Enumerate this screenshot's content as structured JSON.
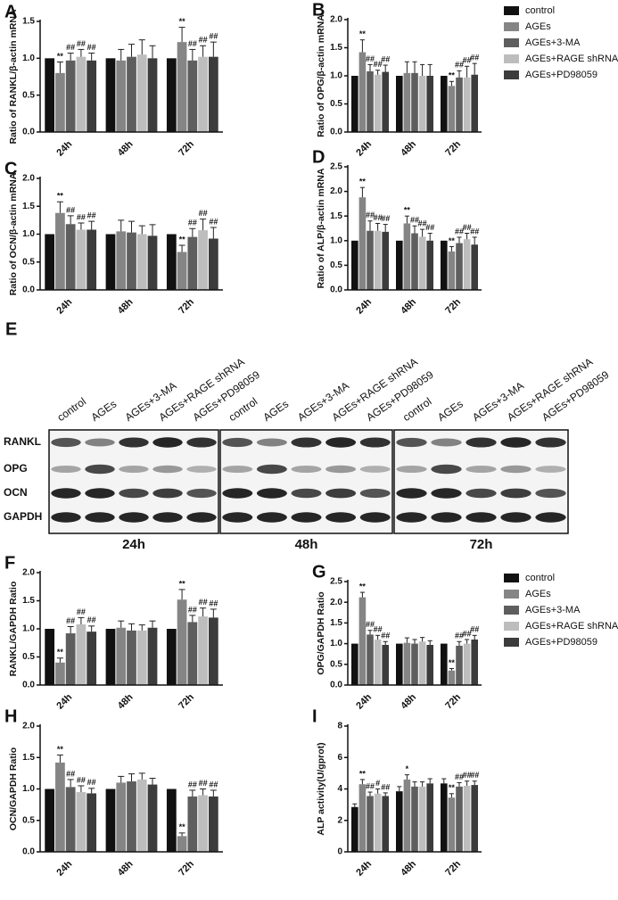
{
  "chart_data": [
    {
      "type": "bar",
      "panel": "A",
      "ylabel": "Ratio of RANKL/β-actin mRNA",
      "categories": [
        "24h",
        "48h",
        "72h"
      ],
      "ylim": [
        0,
        1.5
      ],
      "yticks": [
        {
          "value": 0,
          "label": "0.0"
        },
        0.5,
        {
          "value": 1,
          "label": "1.0"
        },
        1.5
      ],
      "series": [
        {
          "color": "#111111",
          "values": [
            1.0,
            1.0,
            1.0
          ],
          "errors": [
            0,
            0,
            0
          ],
          "annotations": [
            null,
            null,
            null
          ]
        },
        {
          "color": "#858585",
          "values": [
            0.8,
            0.97,
            1.22
          ],
          "errors": [
            0.15,
            0.15,
            0.2
          ],
          "annotations": [
            "**",
            null,
            "**"
          ]
        },
        {
          "color": "#5e5e5e",
          "values": [
            0.97,
            1.02,
            0.97
          ],
          "errors": [
            0.1,
            0.17,
            0.15
          ],
          "annotations": [
            "##",
            null,
            "##"
          ]
        },
        {
          "color": "#bdbdbd",
          "values": [
            1.02,
            1.05,
            1.02
          ],
          "errors": [
            0.1,
            0.2,
            0.15
          ],
          "annotations": [
            "##",
            null,
            "##"
          ]
        },
        {
          "color": "#3c3c3c",
          "values": [
            0.97,
            1.0,
            1.02
          ],
          "errors": [
            0.1,
            0.17,
            0.2
          ],
          "annotations": [
            "##",
            null,
            "##"
          ]
        }
      ]
    },
    {
      "type": "bar",
      "panel": "B",
      "ylabel": "Ratio of OPG/β-actin mRNA",
      "categories": [
        "24h",
        "48h",
        "72h"
      ],
      "ylim": [
        0,
        2
      ],
      "yticks": [
        {
          "value": 0,
          "label": "0.0"
        },
        0.5,
        {
          "value": 1,
          "label": "1.0"
        },
        1.5,
        {
          "value": 2,
          "label": "2.0"
        }
      ],
      "legend": "right",
      "series": [
        {
          "name": "control",
          "color": "#111111",
          "values": [
            1.0,
            1.0,
            1.0
          ],
          "errors": [
            0,
            0,
            0
          ],
          "annotations": [
            null,
            null,
            null
          ]
        },
        {
          "name": "AGEs",
          "color": "#858585",
          "values": [
            1.42,
            1.05,
            0.82
          ],
          "errors": [
            0.22,
            0.2,
            0.08
          ],
          "annotations": [
            "**",
            null,
            "**"
          ]
        },
        {
          "name": "AGEs+3-MA",
          "color": "#5e5e5e",
          "values": [
            1.08,
            1.05,
            0.97
          ],
          "errors": [
            0.12,
            0.2,
            0.12
          ],
          "annotations": [
            "##",
            null,
            "##"
          ]
        },
        {
          "name": "AGEs+RAGE shRNA",
          "color": "#bdbdbd",
          "values": [
            1.02,
            1.0,
            0.97
          ],
          "errors": [
            0.08,
            0.2,
            0.2
          ],
          "annotations": [
            "##",
            null,
            "##"
          ]
        },
        {
          "name": "AGEs+PD98059",
          "color": "#3c3c3c",
          "values": [
            1.07,
            1.0,
            1.02
          ],
          "errors": [
            0.12,
            0.2,
            0.2
          ],
          "annotations": [
            "##",
            null,
            "##"
          ]
        }
      ]
    },
    {
      "type": "bar",
      "panel": "C",
      "ylabel": "Ratio of OCN/β-actin mRNA",
      "categories": [
        "24h",
        "48h",
        "72h"
      ],
      "ylim": [
        0,
        2
      ],
      "yticks": [
        {
          "value": 0,
          "label": "0.0"
        },
        0.5,
        {
          "value": 1,
          "label": "1.0"
        },
        1.5,
        {
          "value": 2,
          "label": "2.0"
        }
      ],
      "series": [
        {
          "color": "#111111",
          "values": [
            1.0,
            1.0,
            1.0
          ],
          "errors": [
            0,
            0,
            0
          ],
          "annotations": [
            null,
            null,
            null
          ]
        },
        {
          "color": "#858585",
          "values": [
            1.38,
            1.05,
            0.68
          ],
          "errors": [
            0.2,
            0.2,
            0.12
          ],
          "annotations": [
            "**",
            null,
            "**"
          ]
        },
        {
          "color": "#5e5e5e",
          "values": [
            1.18,
            1.03,
            0.95
          ],
          "errors": [
            0.15,
            0.2,
            0.15
          ],
          "annotations": [
            "##",
            null,
            "##"
          ]
        },
        {
          "color": "#bdbdbd",
          "values": [
            1.08,
            1.0,
            1.07
          ],
          "errors": [
            0.12,
            0.15,
            0.2
          ],
          "annotations": [
            "##",
            null,
            "##"
          ]
        },
        {
          "color": "#3c3c3c",
          "values": [
            1.08,
            0.97,
            0.92
          ],
          "errors": [
            0.15,
            0.2,
            0.2
          ],
          "annotations": [
            "##",
            null,
            "##"
          ]
        }
      ]
    },
    {
      "type": "bar",
      "panel": "D",
      "ylabel": "Ratio of ALP/β-actin mRNA",
      "categories": [
        "24h",
        "48h",
        "72h"
      ],
      "ylim": [
        0,
        2.5
      ],
      "yticks": [
        {
          "value": 0,
          "label": "0.0"
        },
        0.5,
        {
          "value": 1,
          "label": "1.0"
        },
        1.5,
        {
          "value": 2,
          "label": "2.0"
        },
        2.5
      ],
      "series": [
        {
          "color": "#111111",
          "values": [
            1.0,
            1.0,
            1.0
          ],
          "errors": [
            0,
            0,
            0
          ],
          "annotations": [
            null,
            null,
            null
          ]
        },
        {
          "color": "#858585",
          "values": [
            1.88,
            1.35,
            0.78
          ],
          "errors": [
            0.2,
            0.15,
            0.1
          ],
          "annotations": [
            "**",
            "**",
            "**"
          ]
        },
        {
          "color": "#5e5e5e",
          "values": [
            1.2,
            1.15,
            0.95
          ],
          "errors": [
            0.2,
            0.15,
            0.12
          ],
          "annotations": [
            "##",
            "##",
            "##"
          ]
        },
        {
          "color": "#bdbdbd",
          "values": [
            1.2,
            1.08,
            1.03
          ],
          "errors": [
            0.15,
            0.15,
            0.12
          ],
          "annotations": [
            "##",
            "##",
            "##"
          ]
        },
        {
          "color": "#3c3c3c",
          "values": [
            1.18,
            1.0,
            0.92
          ],
          "errors": [
            0.15,
            0.15,
            0.15
          ],
          "annotations": [
            "##",
            "##",
            "##"
          ]
        }
      ]
    },
    {
      "type": "bar",
      "panel": "F",
      "ylabel": "RANKL/GAPDH Ratio",
      "categories": [
        "24h",
        "48h",
        "72h"
      ],
      "ylim": [
        0,
        2
      ],
      "yticks": [
        {
          "value": 0,
          "label": "0.0"
        },
        0.5,
        {
          "value": 1,
          "label": "1.0"
        },
        1.5,
        {
          "value": 2,
          "label": "2.0"
        }
      ],
      "series": [
        {
          "color": "#111111",
          "values": [
            1.0,
            1.0,
            1.0
          ],
          "errors": [
            0,
            0,
            0
          ],
          "annotations": [
            null,
            null,
            null
          ]
        },
        {
          "color": "#858585",
          "values": [
            0.4,
            1.02,
            1.52
          ],
          "errors": [
            0.08,
            0.12,
            0.18
          ],
          "annotations": [
            "**",
            null,
            "**"
          ]
        },
        {
          "color": "#5e5e5e",
          "values": [
            0.92,
            0.97,
            1.12
          ],
          "errors": [
            0.12,
            0.12,
            0.12
          ],
          "annotations": [
            "##",
            null,
            "##"
          ]
        },
        {
          "color": "#bdbdbd",
          "values": [
            1.08,
            0.97,
            1.22
          ],
          "errors": [
            0.12,
            0.1,
            0.15
          ],
          "annotations": [
            "##",
            null,
            "##"
          ]
        },
        {
          "color": "#3c3c3c",
          "values": [
            0.95,
            1.02,
            1.2
          ],
          "errors": [
            0.1,
            0.12,
            0.15
          ],
          "annotations": [
            "##",
            null,
            "##"
          ]
        }
      ]
    },
    {
      "type": "bar",
      "panel": "G",
      "ylabel": "OPG/GAPDH Ratio",
      "categories": [
        "24h",
        "48h",
        "72h"
      ],
      "ylim": [
        0,
        2.5
      ],
      "yticks": [
        {
          "value": 0,
          "label": "0.0"
        },
        0.5,
        {
          "value": 1,
          "label": "1.0"
        },
        1.5,
        {
          "value": 2,
          "label": "2.0"
        },
        2.5
      ],
      "legend": "right",
      "series": [
        {
          "name": "control",
          "color": "#111111",
          "values": [
            1.0,
            1.0,
            1.0
          ],
          "errors": [
            0,
            0,
            0
          ],
          "annotations": [
            null,
            null,
            null
          ]
        },
        {
          "name": "AGEs",
          "color": "#858585",
          "values": [
            2.12,
            1.02,
            0.35
          ],
          "errors": [
            0.12,
            0.12,
            0.05
          ],
          "annotations": [
            "**",
            null,
            "**"
          ]
        },
        {
          "name": "AGEs+3-MA",
          "color": "#5e5e5e",
          "values": [
            1.22,
            1.0,
            0.95
          ],
          "errors": [
            0.1,
            0.1,
            0.1
          ],
          "annotations": [
            "##",
            null,
            "##"
          ]
        },
        {
          "name": "AGEs+RAGE shRNA",
          "color": "#bdbdbd",
          "values": [
            1.1,
            1.05,
            1.0
          ],
          "errors": [
            0.1,
            0.1,
            0.1
          ],
          "annotations": [
            "##",
            null,
            "##"
          ]
        },
        {
          "name": "AGEs+PD98059",
          "color": "#3c3c3c",
          "values": [
            0.97,
            0.97,
            1.1
          ],
          "errors": [
            0.08,
            0.1,
            0.1
          ],
          "annotations": [
            "##",
            null,
            "##"
          ]
        }
      ]
    },
    {
      "type": "bar",
      "panel": "H",
      "ylabel": "OCN/GAPDH Ratio",
      "categories": [
        "24h",
        "48h",
        "72h"
      ],
      "ylim": [
        0,
        2
      ],
      "yticks": [
        {
          "value": 0,
          "label": "0.0"
        },
        0.5,
        {
          "value": 1,
          "label": "1.0"
        },
        1.5,
        {
          "value": 2,
          "label": "2.0"
        }
      ],
      "series": [
        {
          "color": "#111111",
          "values": [
            1.0,
            1.0,
            1.0
          ],
          "errors": [
            0,
            0,
            0
          ],
          "annotations": [
            null,
            null,
            null
          ]
        },
        {
          "color": "#858585",
          "values": [
            1.42,
            1.1,
            0.25
          ],
          "errors": [
            0.12,
            0.1,
            0.05
          ],
          "annotations": [
            "**",
            null,
            "**"
          ]
        },
        {
          "color": "#5e5e5e",
          "values": [
            1.03,
            1.12,
            0.88
          ],
          "errors": [
            0.12,
            0.12,
            0.1
          ],
          "annotations": [
            "##",
            null,
            "##"
          ]
        },
        {
          "color": "#bdbdbd",
          "values": [
            0.95,
            1.15,
            0.9
          ],
          "errors": [
            0.1,
            0.1,
            0.1
          ],
          "annotations": [
            "##",
            null,
            "##"
          ]
        },
        {
          "color": "#3c3c3c",
          "values": [
            0.93,
            1.07,
            0.88
          ],
          "errors": [
            0.08,
            0.1,
            0.1
          ],
          "annotations": [
            "##",
            null,
            "##"
          ]
        }
      ]
    },
    {
      "type": "bar",
      "panel": "I",
      "ylabel": "ALP activity(U/gprot)",
      "categories": [
        "24h",
        "48h",
        "72h"
      ],
      "ylim": [
        0,
        8
      ],
      "yticks": [
        0,
        2,
        4,
        6,
        8
      ],
      "series": [
        {
          "color": "#111111",
          "values": [
            2.85,
            3.85,
            4.35
          ],
          "errors": [
            0.2,
            0.3,
            0.3
          ],
          "annotations": [
            null,
            null,
            null
          ]
        },
        {
          "color": "#858585",
          "values": [
            4.3,
            4.6,
            3.45
          ],
          "errors": [
            0.3,
            0.3,
            0.25
          ],
          "annotations": [
            "**",
            "*",
            "**"
          ]
        },
        {
          "color": "#5e5e5e",
          "values": [
            3.55,
            4.15,
            4.15
          ],
          "errors": [
            0.25,
            0.3,
            0.25
          ],
          "annotations": [
            "##",
            null,
            "##"
          ]
        },
        {
          "color": "#bdbdbd",
          "values": [
            3.7,
            4.15,
            4.2
          ],
          "errors": [
            0.3,
            0.3,
            0.3
          ],
          "annotations": [
            "#",
            null,
            "##"
          ]
        },
        {
          "color": "#3c3c3c",
          "values": [
            3.55,
            4.35,
            4.25
          ],
          "errors": [
            0.2,
            0.3,
            0.25
          ],
          "annotations": [
            "##",
            null,
            "##"
          ]
        }
      ]
    }
  ],
  "blot": {
    "panel": "E",
    "lanes": [
      "control",
      "AGEs",
      "AGEs+3-MA",
      "AGEs+RAGE shRNA",
      "AGEs+PD98059"
    ],
    "rows": [
      "RANKL",
      "OPG",
      "OCN",
      "GAPDH"
    ],
    "groups": [
      "24h",
      "48h",
      "72h"
    ]
  }
}
